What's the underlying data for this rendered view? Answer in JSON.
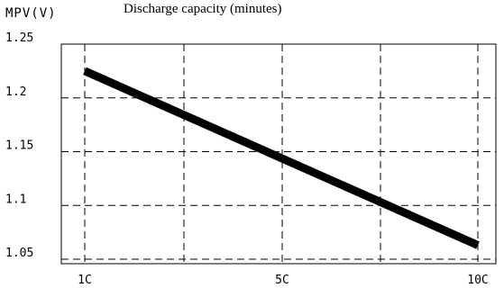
{
  "chart_data": {
    "type": "line",
    "title": "Discharge capacity (minutes)",
    "ylabel": "MPV(V)",
    "xlabel": "",
    "categories": [
      "1C",
      "5C",
      "10C"
    ],
    "ylim": [
      1.05,
      1.25
    ],
    "yticks": [
      "1.25",
      "1.2",
      "1.15",
      "1.1",
      "1.05"
    ],
    "grid": true,
    "grid_style": "dashed",
    "series": [
      {
        "name": "",
        "x": [
          "1C",
          "10C"
        ],
        "y": [
          1.225,
          1.063
        ],
        "color": "#000000"
      }
    ]
  }
}
